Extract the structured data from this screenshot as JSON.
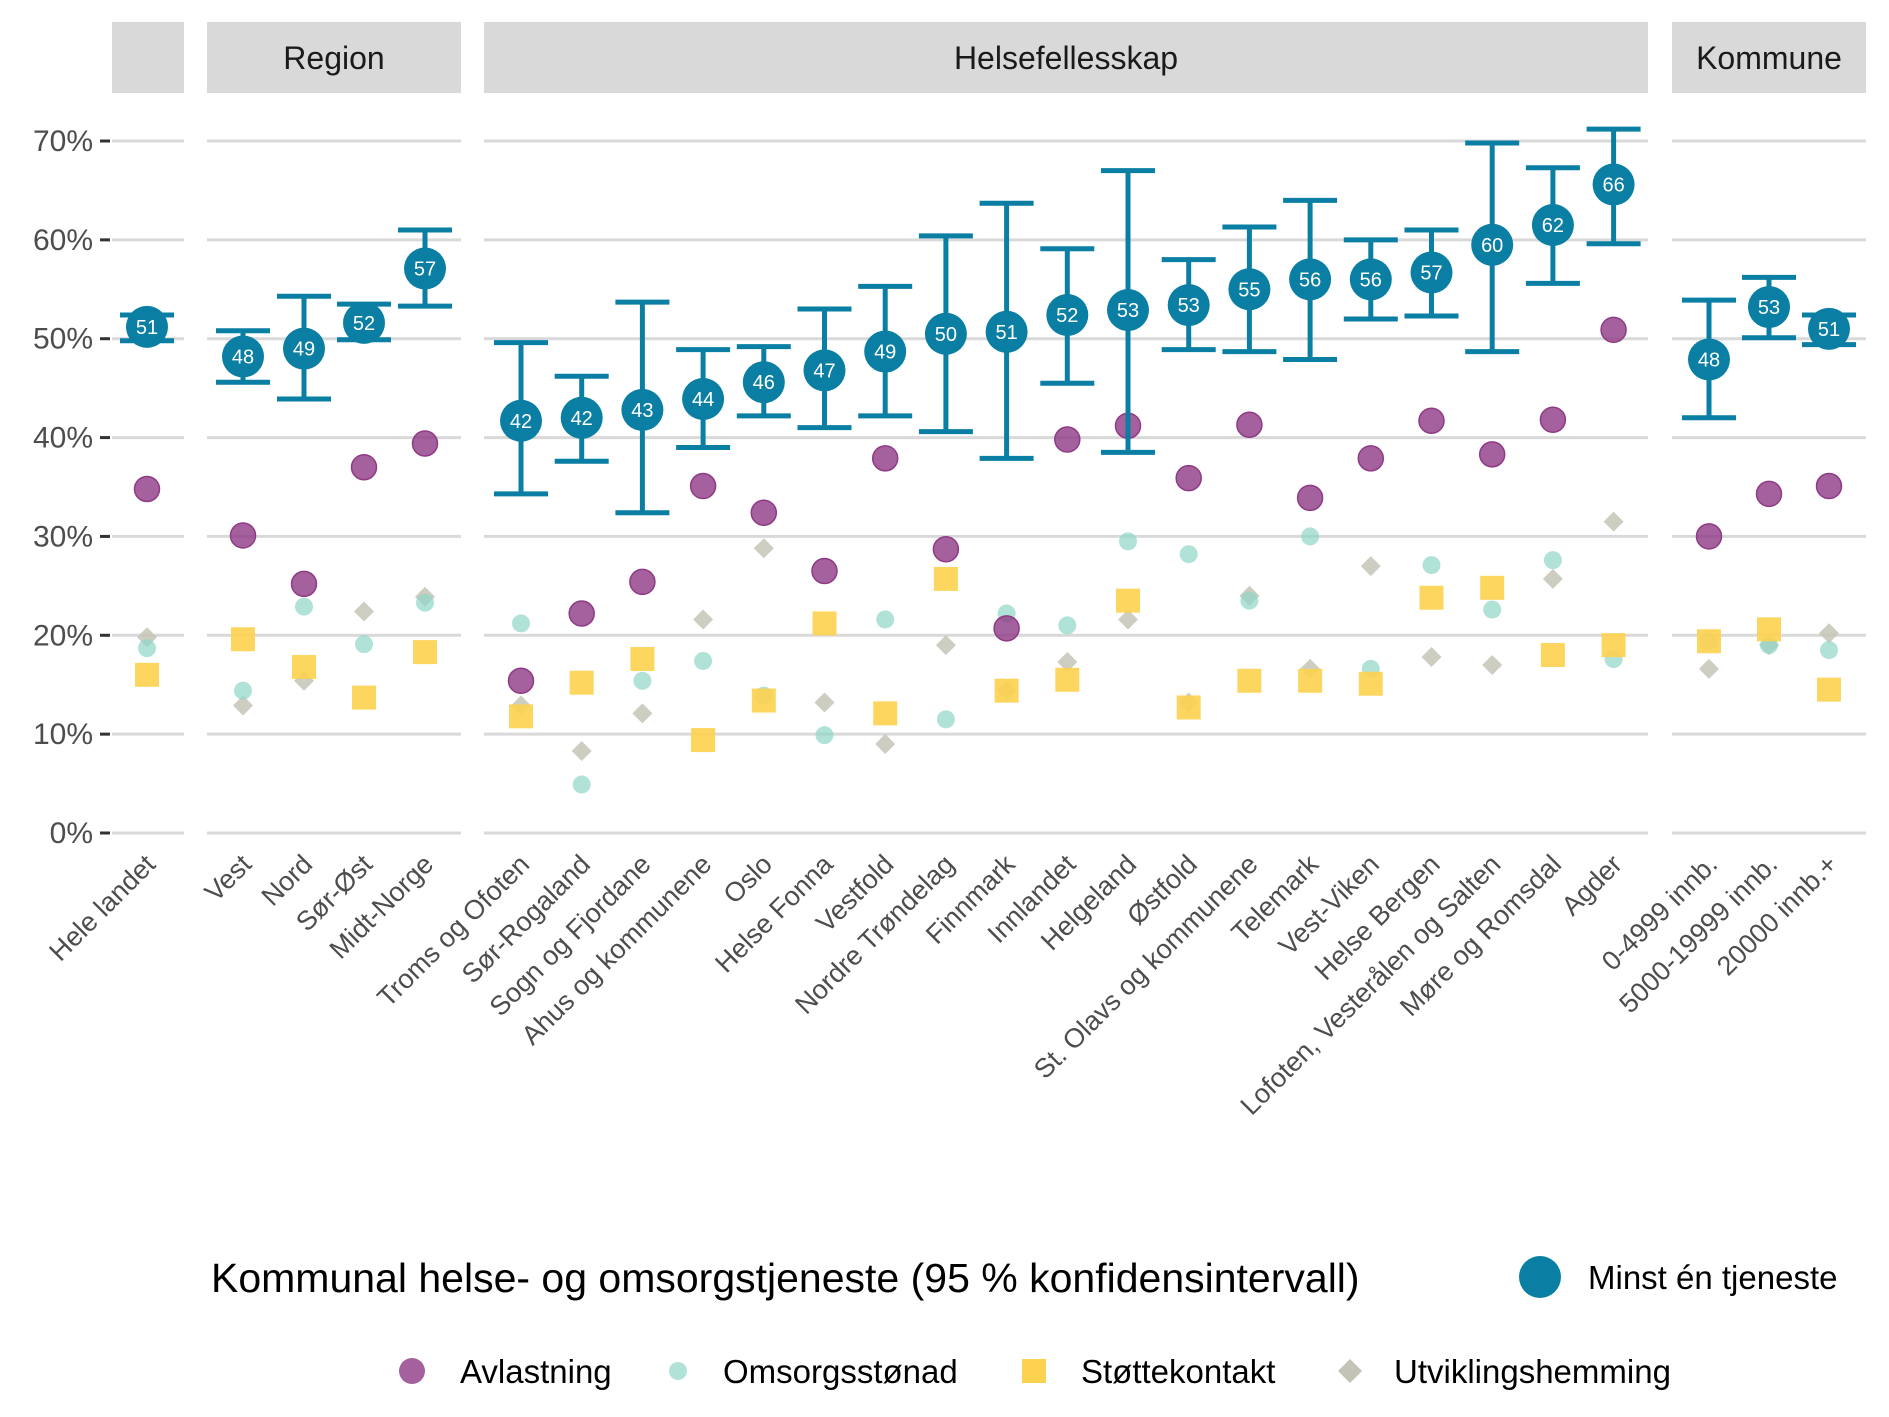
{
  "chart_data": {
    "type": "scatter",
    "ylim": [
      0,
      70
    ],
    "yticks": [
      "0%",
      "10%",
      "20%",
      "30%",
      "40%",
      "50%",
      "60%",
      "70%"
    ],
    "grid": true,
    "legend_placement": "bottom",
    "colors": {
      "main": "#0a7fa3",
      "avlastning": "#8f3a85",
      "omsorgsstonad": "#8fd6c8",
      "stottekontakt": "#fdd24f",
      "utviklingshemming": "#c4c4b6"
    },
    "legend": {
      "title": "Kommunal helse- og omsorgstjeneste (95 % konfidensintervall)",
      "main": "Minst én tjeneste",
      "avlastning": "Avlastning",
      "omsorgsstonad": "Omsorgsstønad",
      "stottekontakt": "Støttekontakt",
      "utviklingshemming": "Utviklingshemming"
    },
    "facets": [
      {
        "title": "",
        "categories": [
          {
            "name": "Hele landet",
            "label": "51",
            "value": 51.2,
            "ci": [
              49.8,
              52.4
            ],
            "avlastning": 34.8,
            "omsorgsstonad": 18.7,
            "stottekontakt": 16.0,
            "utviklingshemming": 19.8
          }
        ]
      },
      {
        "title": "Region",
        "categories": [
          {
            "name": "Vest",
            "label": "48",
            "value": 48.2,
            "ci": [
              45.6,
              50.8
            ],
            "avlastning": 30.1,
            "omsorgsstonad": 14.4,
            "stottekontakt": 19.6,
            "utviklingshemming": 12.9
          },
          {
            "name": "Nord",
            "label": "49",
            "value": 49.0,
            "ci": [
              43.9,
              54.3
            ],
            "avlastning": 25.2,
            "omsorgsstonad": 22.9,
            "stottekontakt": 16.8,
            "utviklingshemming": 15.4
          },
          {
            "name": "Sør-Øst",
            "label": "52",
            "value": 51.6,
            "ci": [
              49.9,
              53.5
            ],
            "avlastning": 37.0,
            "omsorgsstonad": 19.1,
            "stottekontakt": 13.7,
            "utviklingshemming": 22.4
          },
          {
            "name": "Midt-Norge",
            "label": "57",
            "value": 57.1,
            "ci": [
              53.3,
              61.0
            ],
            "avlastning": 39.4,
            "omsorgsstonad": 23.3,
            "stottekontakt": 18.3,
            "utviklingshemming": 23.9
          }
        ]
      },
      {
        "title": "Helsefellesskap",
        "categories": [
          {
            "name": "Troms og Ofoten",
            "label": "42",
            "value": 41.7,
            "ci": [
              34.3,
              49.6
            ],
            "avlastning": 15.4,
            "omsorgsstonad": 21.2,
            "stottekontakt": 11.8,
            "utviklingshemming": 12.9
          },
          {
            "name": "Sør-Rogaland",
            "label": "42",
            "value": 42.0,
            "ci": [
              37.6,
              46.2
            ],
            "avlastning": 22.2,
            "omsorgsstonad": 4.9,
            "stottekontakt": 15.2,
            "utviklingshemming": 8.3
          },
          {
            "name": "Sogn og Fjordane",
            "label": "43",
            "value": 42.8,
            "ci": [
              32.4,
              53.7
            ],
            "avlastning": 25.4,
            "omsorgsstonad": 15.4,
            "stottekontakt": 17.6,
            "utviklingshemming": 12.1
          },
          {
            "name": "Ahus og kommunene",
            "label": "44",
            "value": 43.9,
            "ci": [
              39.0,
              48.9
            ],
            "avlastning": 35.1,
            "omsorgsstonad": 17.4,
            "stottekontakt": 9.4,
            "utviklingshemming": 21.6
          },
          {
            "name": "Oslo",
            "label": "46",
            "value": 45.6,
            "ci": [
              42.2,
              49.2
            ],
            "avlastning": 32.4,
            "omsorgsstonad": 13.9,
            "stottekontakt": 13.4,
            "utviklingshemming": 28.8
          },
          {
            "name": "Helse Fonna",
            "label": "47",
            "value": 46.8,
            "ci": [
              41.0,
              53.0
            ],
            "avlastning": 26.5,
            "omsorgsstonad": 9.9,
            "stottekontakt": 21.2,
            "utviklingshemming": 13.2
          },
          {
            "name": "Vestfold",
            "label": "49",
            "value": 48.7,
            "ci": [
              42.2,
              55.3
            ],
            "avlastning": 37.9,
            "omsorgsstonad": 21.6,
            "stottekontakt": 12.1,
            "utviklingshemming": 9.0
          },
          {
            "name": "Nordre Trøndelag",
            "label": "50",
            "value": 50.5,
            "ci": [
              40.6,
              60.4
            ],
            "avlastning": 28.7,
            "omsorgsstonad": 11.5,
            "stottekontakt": 25.7,
            "utviklingshemming": 19.0
          },
          {
            "name": "Finnmark",
            "label": "51",
            "value": 50.7,
            "ci": [
              37.9,
              63.7
            ],
            "avlastning": 20.7,
            "omsorgsstonad": 22.2,
            "stottekontakt": 14.4,
            "utviklingshemming": 14.4
          },
          {
            "name": "Innlandet",
            "label": "52",
            "value": 52.4,
            "ci": [
              45.5,
              59.1
            ],
            "avlastning": 39.8,
            "omsorgsstonad": 21.0,
            "stottekontakt": 15.5,
            "utviklingshemming": 17.3
          },
          {
            "name": "Helgeland",
            "label": "53",
            "value": 52.9,
            "ci": [
              38.5,
              67.0
            ],
            "avlastning": 41.2,
            "omsorgsstonad": 29.5,
            "stottekontakt": 23.5,
            "utviklingshemming": 21.6
          },
          {
            "name": "Østfold",
            "label": "53",
            "value": 53.4,
            "ci": [
              48.9,
              58.0
            ],
            "avlastning": 35.9,
            "omsorgsstonad": 28.2,
            "stottekontakt": 12.7,
            "utviklingshemming": 13.2
          },
          {
            "name": "St. Olavs og kommunene",
            "label": "55",
            "value": 55.0,
            "ci": [
              48.7,
              61.3
            ],
            "avlastning": 41.3,
            "omsorgsstonad": 23.5,
            "stottekontakt": 15.4,
            "utviklingshemming": 24.0
          },
          {
            "name": "Telemark",
            "label": "56",
            "value": 56.0,
            "ci": [
              47.9,
              64.0
            ],
            "avlastning": 33.9,
            "omsorgsstonad": 30.0,
            "stottekontakt": 15.4,
            "utviklingshemming": 16.6
          },
          {
            "name": "Vest-Viken",
            "label": "56",
            "value": 56.0,
            "ci": [
              52.0,
              60.0
            ],
            "avlastning": 37.9,
            "omsorgsstonad": 16.6,
            "stottekontakt": 15.1,
            "utviklingshemming": 27.0
          },
          {
            "name": "Helse Bergen",
            "label": "57",
            "value": 56.7,
            "ci": [
              52.3,
              61.0
            ],
            "avlastning": 41.7,
            "omsorgsstonad": 27.1,
            "stottekontakt": 23.8,
            "utviklingshemming": 17.8
          },
          {
            "name": "Lofoten, Vesterålen og Salten",
            "label": "60",
            "value": 59.5,
            "ci": [
              48.7,
              69.8
            ],
            "avlastning": 38.3,
            "omsorgsstonad": 22.6,
            "stottekontakt": 24.8,
            "utviklingshemming": 17.0
          },
          {
            "name": "Møre og Romsdal",
            "label": "62",
            "value": 61.5,
            "ci": [
              55.6,
              67.3
            ],
            "avlastning": 41.8,
            "omsorgsstonad": 27.6,
            "stottekontakt": 18.0,
            "utviklingshemming": 25.7
          },
          {
            "name": "Agder",
            "label": "66",
            "value": 65.6,
            "ci": [
              59.6,
              71.2
            ],
            "avlastning": 50.9,
            "omsorgsstonad": 17.6,
            "stottekontakt": 19.0,
            "utviklingshemming": 31.5
          }
        ]
      },
      {
        "title": "Kommune",
        "categories": [
          {
            "name": "0-4999 innb.",
            "label": "48",
            "value": 47.9,
            "ci": [
              42.0,
              53.9
            ],
            "avlastning": 30.0,
            "omsorgsstonad": 19.4,
            "stottekontakt": 19.4,
            "utviklingshemming": 16.6
          },
          {
            "name": "5000-19999 innb.",
            "label": "53",
            "value": 53.2,
            "ci": [
              50.1,
              56.2
            ],
            "avlastning": 34.3,
            "omsorgsstonad": 19.0,
            "stottekontakt": 20.6,
            "utviklingshemming": 19.0
          },
          {
            "name": "20000 innb.+",
            "label": "51",
            "value": 51.0,
            "ci": [
              49.4,
              52.4
            ],
            "avlastning": 35.1,
            "omsorgsstonad": 18.5,
            "stottekontakt": 14.5,
            "utviklingshemming": 20.2
          }
        ]
      }
    ]
  }
}
